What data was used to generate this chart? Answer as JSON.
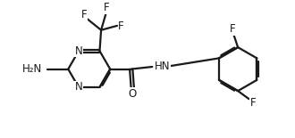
{
  "bg_color": "#ffffff",
  "line_color": "#1a1a1a",
  "line_width": 1.6,
  "font_size_atom": 8.5,
  "figsize": [
    3.3,
    1.55
  ],
  "dpi": 100,
  "xlim": [
    0,
    10
  ],
  "ylim": [
    0,
    4.7
  ]
}
